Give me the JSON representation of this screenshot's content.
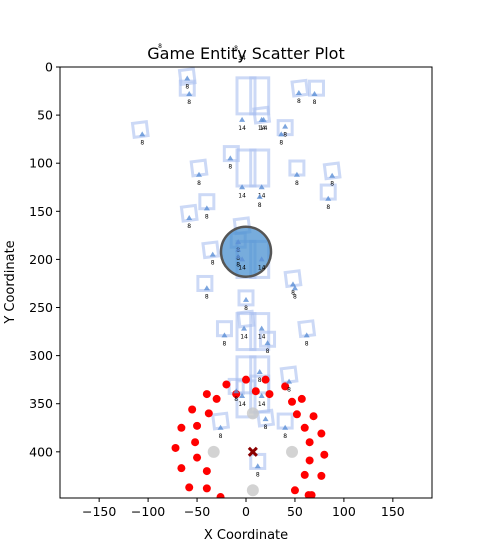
{
  "chart_data": {
    "type": "scatter",
    "title": "Game Entity Scatter Plot",
    "xlabel": "X Coordinate",
    "ylabel": "Y Coordinate",
    "xlim": [
      -190,
      190
    ],
    "ylim": [
      448,
      0
    ],
    "y_inverted": true,
    "xticks": [
      -150,
      -100,
      -50,
      0,
      50,
      100,
      150
    ],
    "yticks": [
      0,
      50,
      100,
      150,
      200,
      250,
      300,
      350,
      400
    ],
    "grid": false,
    "colors": {
      "square_outline": "#aabff0",
      "triangle": "#5b8fd6",
      "red_point": "#ff0000",
      "gray_point": "#c8c8c8",
      "player_circle": "#4a90d0",
      "cross_marker": "#8b0000"
    },
    "squares": [
      {
        "x": -60,
        "y": 10,
        "size": 8
      },
      {
        "x": -60,
        "y": 22,
        "size": 8
      },
      {
        "x": 0,
        "y": 30,
        "size": 14
      },
      {
        "x": 14,
        "y": 30,
        "size": 14
      },
      {
        "x": 55,
        "y": 22,
        "size": 8
      },
      {
        "x": 72,
        "y": 22,
        "size": 8
      },
      {
        "x": 16,
        "y": 50,
        "size": 8
      },
      {
        "x": 40,
        "y": 63,
        "size": 8
      },
      {
        "x": -108,
        "y": 65,
        "size": 8
      },
      {
        "x": -15,
        "y": 90,
        "size": 8
      },
      {
        "x": -48,
        "y": 105,
        "size": 8
      },
      {
        "x": 0,
        "y": 105,
        "size": 14
      },
      {
        "x": 14,
        "y": 105,
        "size": 14
      },
      {
        "x": 52,
        "y": 105,
        "size": 8
      },
      {
        "x": 88,
        "y": 108,
        "size": 8
      },
      {
        "x": -40,
        "y": 140,
        "size": 8
      },
      {
        "x": -58,
        "y": 152,
        "size": 8
      },
      {
        "x": 84,
        "y": 130,
        "size": 8
      },
      {
        "x": -4,
        "y": 165,
        "size": 8
      },
      {
        "x": -8,
        "y": 180,
        "size": 8
      },
      {
        "x": -36,
        "y": 190,
        "size": 8
      },
      {
        "x": 0,
        "y": 200,
        "size": 14
      },
      {
        "x": 14,
        "y": 200,
        "size": 14
      },
      {
        "x": -42,
        "y": 225,
        "size": 8
      },
      {
        "x": 48,
        "y": 220,
        "size": 8
      },
      {
        "x": 0,
        "y": 240,
        "size": 8
      },
      {
        "x": 0,
        "y": 262,
        "size": 8
      },
      {
        "x": -22,
        "y": 272,
        "size": 8
      },
      {
        "x": 0,
        "y": 275,
        "size": 14
      },
      {
        "x": 14,
        "y": 275,
        "size": 14
      },
      {
        "x": 62,
        "y": 272,
        "size": 8
      },
      {
        "x": 22,
        "y": 283,
        "size": 8
      },
      {
        "x": 0,
        "y": 320,
        "size": 14
      },
      {
        "x": 14,
        "y": 320,
        "size": 14
      },
      {
        "x": 44,
        "y": 320,
        "size": 8
      },
      {
        "x": -10,
        "y": 332,
        "size": 8
      },
      {
        "x": 14,
        "y": 340,
        "size": 14
      },
      {
        "x": 0,
        "y": 345,
        "size": 14
      },
      {
        "x": -26,
        "y": 368,
        "size": 8
      },
      {
        "x": 40,
        "y": 368,
        "size": 8
      },
      {
        "x": 20,
        "y": 365,
        "size": 8
      },
      {
        "x": 12,
        "y": 410,
        "size": 8
      }
    ],
    "triangles": [
      {
        "x": -60,
        "y": 12,
        "label": "8"
      },
      {
        "x": -58,
        "y": 28,
        "label": "8"
      },
      {
        "x": 54,
        "y": 27,
        "label": "8"
      },
      {
        "x": 70,
        "y": 28,
        "label": "8"
      },
      {
        "x": -4,
        "y": 55,
        "label": "14"
      },
      {
        "x": 16,
        "y": 55,
        "label": "14"
      },
      {
        "x": 18,
        "y": 55,
        "label": "14"
      },
      {
        "x": 40,
        "y": 62,
        "label": "8"
      },
      {
        "x": 36,
        "y": 70,
        "label": "8"
      },
      {
        "x": -106,
        "y": 70,
        "label": "8"
      },
      {
        "x": -16,
        "y": 95,
        "label": "8"
      },
      {
        "x": -48,
        "y": 112,
        "label": "8"
      },
      {
        "x": -4,
        "y": 125,
        "label": "14"
      },
      {
        "x": 16,
        "y": 125,
        "label": "14"
      },
      {
        "x": 52,
        "y": 112,
        "label": "8"
      },
      {
        "x": 88,
        "y": 113,
        "label": "8"
      },
      {
        "x": -40,
        "y": 147,
        "label": "8"
      },
      {
        "x": -58,
        "y": 157,
        "label": "8"
      },
      {
        "x": 14,
        "y": 135,
        "label": "8"
      },
      {
        "x": 84,
        "y": 137,
        "label": "8"
      },
      {
        "x": -8,
        "y": 182,
        "label": "8"
      },
      {
        "x": -8,
        "y": 190,
        "label": "8"
      },
      {
        "x": -34,
        "y": 195,
        "label": "8"
      },
      {
        "x": -8,
        "y": 197,
        "label": "8"
      },
      {
        "x": -4,
        "y": 200,
        "label": "14"
      },
      {
        "x": 16,
        "y": 200,
        "label": "14"
      },
      {
        "x": -40,
        "y": 230,
        "label": "8"
      },
      {
        "x": 48,
        "y": 226,
        "label": "8"
      },
      {
        "x": 50,
        "y": 230,
        "label": "8"
      },
      {
        "x": 0,
        "y": 242,
        "label": "8"
      },
      {
        "x": -2,
        "y": 272,
        "label": "14"
      },
      {
        "x": 16,
        "y": 272,
        "label": "14"
      },
      {
        "x": -22,
        "y": 279,
        "label": "8"
      },
      {
        "x": 62,
        "y": 279,
        "label": "8"
      },
      {
        "x": 22,
        "y": 287,
        "label": "8"
      },
      {
        "x": 14,
        "y": 317,
        "label": "8"
      },
      {
        "x": 44,
        "y": 327,
        "label": "8"
      },
      {
        "x": -10,
        "y": 337,
        "label": "8"
      },
      {
        "x": -4,
        "y": 342,
        "label": "14"
      },
      {
        "x": 16,
        "y": 342,
        "label": "14"
      },
      {
        "x": -26,
        "y": 375,
        "label": "8"
      },
      {
        "x": 40,
        "y": 375,
        "label": "8"
      },
      {
        "x": 20,
        "y": 366,
        "label": "8"
      },
      {
        "x": 12,
        "y": 415,
        "label": "8"
      }
    ],
    "red_points": [
      {
        "x": 0,
        "y": 325
      },
      {
        "x": 20,
        "y": 325
      },
      {
        "x": -20,
        "y": 330
      },
      {
        "x": 40,
        "y": 332
      },
      {
        "x": -40,
        "y": 340
      },
      {
        "x": 57,
        "y": 345
      },
      {
        "x": -55,
        "y": 356
      },
      {
        "x": 69,
        "y": 363
      },
      {
        "x": -66,
        "y": 375
      },
      {
        "x": 77,
        "y": 381
      },
      {
        "x": -72,
        "y": 396
      },
      {
        "x": 80,
        "y": 403
      },
      {
        "x": -66,
        "y": 417
      },
      {
        "x": 77,
        "y": 425
      },
      {
        "x": -58,
        "y": 437
      },
      {
        "x": 67,
        "y": 445
      },
      {
        "x": -30,
        "y": 345
      },
      {
        "x": 47,
        "y": 348
      },
      {
        "x": 52,
        "y": 361
      },
      {
        "x": -38,
        "y": 360
      },
      {
        "x": 60,
        "y": 375
      },
      {
        "x": -50,
        "y": 373
      },
      {
        "x": -52,
        "y": 390
      },
      {
        "x": 65,
        "y": 390
      },
      {
        "x": -50,
        "y": 406
      },
      {
        "x": 65,
        "y": 409
      },
      {
        "x": -40,
        "y": 420
      },
      {
        "x": 60,
        "y": 424
      },
      {
        "x": -40,
        "y": 438
      },
      {
        "x": 50,
        "y": 440
      },
      {
        "x": -26,
        "y": 447
      },
      {
        "x": -10,
        "y": 340
      },
      {
        "x": 24,
        "y": 340
      },
      {
        "x": 10,
        "y": 337
      },
      {
        "x": 64,
        "y": 445
      }
    ],
    "gray_points": [
      {
        "x": 7,
        "y": 360
      },
      {
        "x": -33,
        "y": 400
      },
      {
        "x": 47,
        "y": 400
      },
      {
        "x": 7,
        "y": 440
      }
    ],
    "player": {
      "x": 0,
      "y": 192
    },
    "cross": {
      "x": 7,
      "y": 400
    },
    "top_labels": [
      "8",
      "8",
      "14"
    ]
  }
}
